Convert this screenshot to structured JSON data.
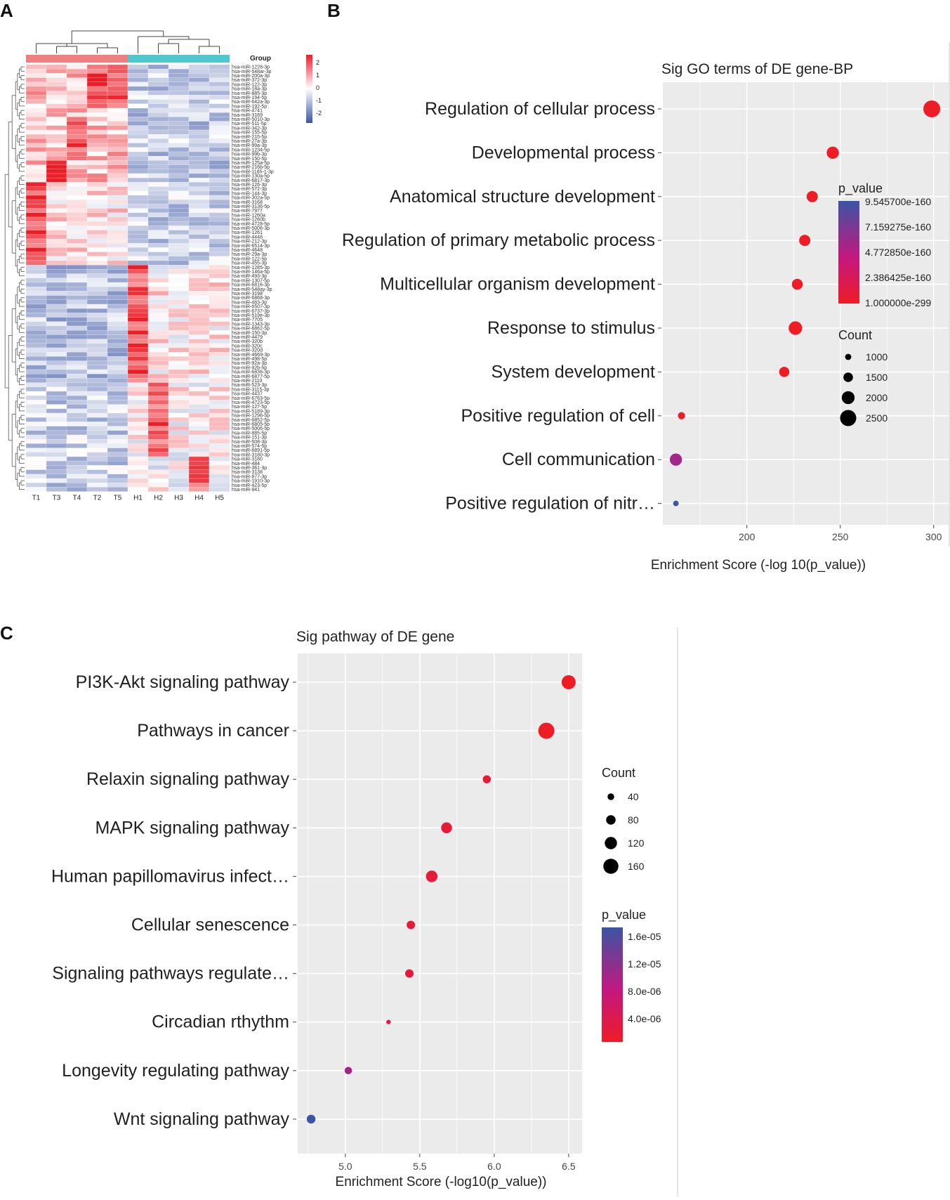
{
  "panels": {
    "a": "A",
    "b": "B",
    "c": "C"
  },
  "colors": {
    "red": "#ee1c25",
    "mid": "#c4177f",
    "blue": "#3b55a5",
    "grid_bg": "#ebebeb",
    "tumor": "#f08080",
    "healthy": "#4fc7cf"
  },
  "chart_data": [
    {
      "type": "heatmap",
      "panel": "A",
      "group_label": "Group",
      "samples": [
        "T1",
        "T3",
        "T4",
        "T2",
        "T5",
        "H1",
        "H2",
        "H3",
        "H4",
        "H5"
      ],
      "scale_ticks": [
        2,
        1,
        0,
        -1,
        -2
      ],
      "rows": [
        "hsa-miR-1228-3p",
        "hsa-miR-548ar-3p",
        "hsa-miR-200a-3p",
        "hsa-miR-372-3p",
        "hsa-miR-122-3p",
        "hsa-miR-18a-3p",
        "hsa-miR-885-3p",
        "hsa-miR-194-5p",
        "hsa-miR-642a-3p",
        "hsa-miR-192-5p",
        "hsa-miR-4741",
        "hsa-miR-3169",
        "hsa-miR-5010-3p",
        "hsa-miR-511-5p",
        "hsa-miR-342-3p",
        "hsa-miR-155-5p",
        "hsa-miR-215-5p",
        "hsa-miR-27a-3p",
        "hsa-miR-99a-3p",
        "hsa-miR-1234-5p",
        "hsa-miR-99b-3p",
        "hsa-miR-150-5p",
        "hsa-miR-125a-5p",
        "hsa-miR-216b-5p",
        "hsa-miR-1185-1-3p",
        "hsa-miR-130a-5p",
        "hsa-miR-6817-3p",
        "hsa-miR-126-3p",
        "hsa-miR-572-3p",
        "hsa-miR-144-3p",
        "hsa-miR-302a-5p",
        "hsa-miR-3168",
        "hsa-miR-3136-5p",
        "hsa-miR-7977",
        "hsa-miR-1260a",
        "hsa-miR-1260b",
        "hsa-miR-4728-5p",
        "hsa-miR-5006-3p",
        "hsa-miR-1261",
        "hsa-miR-4448",
        "hsa-miR-212-3p",
        "hsa-miR-6514-3p",
        "hsa-miR-4648",
        "hsa-miR-29a-3p",
        "hsa-miR-122-5p",
        "hsa-miR-455-3p",
        "hsa-miR-1285-3p",
        "hsa-miR-146a-5p",
        "hsa-miR-493-3p",
        "hsa-miR-1307-5p",
        "hsa-miR-6816-3p",
        "hsa-miR-548ay-3p",
        "hsa-miR-3198",
        "hsa-miR-6868-3p",
        "hsa-miR-483-3p",
        "hsa-miR-6507-3p",
        "hsa-miR-6737-3p",
        "hsa-miR-519e-3p",
        "hsa-miR-7705",
        "hsa-miR-1343-3p",
        "hsa-miR-6862-5p",
        "hsa-miR-150-3p",
        "hsa-miR-4479",
        "hsa-miR-320b",
        "hsa-miR-320c",
        "hsa-miR-320d",
        "hsa-miR-4669-3p",
        "hsa-miR-498-5p",
        "hsa-miR-92a-3p",
        "hsa-miR-92b-5p",
        "hsa-miR-6836-3p",
        "hsa-miR-6877-5p",
        "hsa-miR-2110",
        "hsa-miR-523-3p",
        "hsa-miR-3115-3p",
        "hsa-miR-4437",
        "hsa-miR-6763-5p",
        "hsa-miR-4723-5p",
        "hsa-miR-127-5p",
        "hsa-miR-5189-3p",
        "hsa-miR-1296-5p",
        "hsa-miR-6852-5p",
        "hsa-miR-6805-5p",
        "hsa-miR-5006-5p",
        "hsa-miR-885-5p",
        "hsa-miR-151-3p",
        "hsa-miR-508-3p",
        "hsa-miR-574-5p",
        "hsa-miR-6891-5p",
        "hsa-miR-3180-3p",
        "hsa-miR-3180",
        "hsa-miR-484",
        "hsa-miR-361-3p",
        "hsa-miR-3138",
        "hsa-miR-877-3p",
        "hsa-miR-1910-3p",
        "hsa-miR-423-5p",
        "hsa-miR-941"
      ],
      "values_note": "row-scaled z-scores, -2 to 2"
    },
    {
      "type": "scatter",
      "panel": "B",
      "title": "Sig GO terms of DE gene-BP",
      "xlabel": "Enrichment Score (-log 10(p_value))",
      "xlim": [
        155,
        308
      ],
      "xticks": [
        200,
        250,
        300
      ],
      "categories": [
        "Regulation of cellular process",
        "Developmental process",
        "Anatomical structure development",
        "Regulation of primary metabolic process",
        "Multicellular organism development",
        "Response to stimulus",
        "System development",
        "Positive regulation of cell",
        "Cell communication",
        "Positive regulation of nitr…"
      ],
      "x": [
        299,
        246,
        235,
        231,
        227,
        226,
        220,
        165,
        162,
        162
      ],
      "count": [
        2600,
        1900,
        1750,
        1750,
        1700,
        2100,
        1600,
        1150,
        1900,
        900
      ],
      "p_value_frac": [
        0.0,
        0.0,
        0.0,
        0.0,
        0.0,
        0.0,
        0.0,
        0.0,
        0.6,
        1.0
      ],
      "legend_pvalue": {
        "title": "p_value",
        "labels": [
          "9.545700e-160",
          "7.159275e-160",
          "4.772850e-160",
          "2.386425e-160",
          "1.000000e-299"
        ]
      },
      "legend_count": {
        "title": "Count",
        "values": [
          1000,
          1500,
          2000,
          2500
        ]
      }
    },
    {
      "type": "scatter",
      "panel": "C",
      "title": "Sig pathway of DE gene",
      "xlabel": "Enrichment Score (-log10(p_value))",
      "xlim": [
        4.68,
        6.59
      ],
      "xticks": [
        "5.0",
        "5.5",
        "6.0",
        "6.5"
      ],
      "xtick_values": [
        5.0,
        5.5,
        6.0,
        6.5
      ],
      "categories": [
        "PI3K-Akt signaling pathway",
        "Pathways in cancer",
        "Relaxin signaling pathway",
        "MAPK signaling pathway",
        "Human papillomavirus infect…",
        "Cellular senescence",
        "Signaling pathways regulate…",
        "Circadian rthythm",
        "Longevity regulating pathway",
        "Wnt signaling pathway"
      ],
      "x": [
        6.5,
        6.35,
        5.95,
        5.68,
        5.58,
        5.44,
        5.43,
        5.29,
        5.02,
        4.77
      ],
      "count": [
        145,
        175,
        60,
        100,
        110,
        65,
        65,
        8,
        50,
        70
      ],
      "p_value_frac": [
        0.0,
        0.0,
        0.08,
        0.08,
        0.1,
        0.12,
        0.12,
        0.15,
        0.55,
        1.0
      ],
      "legend_count": {
        "title": "Count",
        "values": [
          40,
          80,
          120,
          160
        ]
      },
      "legend_pvalue": {
        "title": "p_value",
        "labels": [
          "1.6e-05",
          "1.2e-05",
          "8.0e-06",
          "4.0e-06"
        ]
      }
    }
  ]
}
